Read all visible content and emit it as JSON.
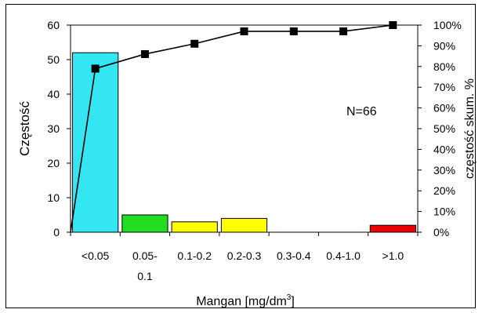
{
  "chart_data": {
    "type": "bar",
    "categories": [
      "<0.05",
      "0.05-\n0.1",
      "0.1-0.2",
      "0.2-0.3",
      "0.3-0.4",
      "0.4-1.0",
      ">1.0"
    ],
    "series": [
      {
        "values": [
          52,
          5,
          3,
          4,
          0,
          0,
          2
        ],
        "colors": [
          "#33e6f2",
          "#22dd22",
          "#ffff00",
          "#ffff00",
          "#ffff00",
          "#ffff00",
          "#ee0000"
        ]
      },
      {
        "values": [
          0.79,
          0.86,
          0.91,
          0.97,
          0.97,
          0.97,
          1.0
        ],
        "axis": "right"
      }
    ],
    "line_start": 0,
    "ylabel": "Częstość",
    "y2label": "częstość skum. %",
    "xlabel": "Mangan [mg/dm",
    "xlabel_sup": "3",
    "xlabel_end": "]",
    "ylim": [
      0,
      60
    ],
    "y2lim": [
      0,
      1
    ],
    "yticks": [
      "0",
      "10",
      "20",
      "30",
      "40",
      "50",
      "60"
    ],
    "y2ticks": [
      "0%",
      "10%",
      "20%",
      "30%",
      "40%",
      "50%",
      "60%",
      "70%",
      "80%",
      "90%",
      "100%"
    ],
    "annotation": "N=66",
    "grid": false,
    "legend": "none"
  }
}
